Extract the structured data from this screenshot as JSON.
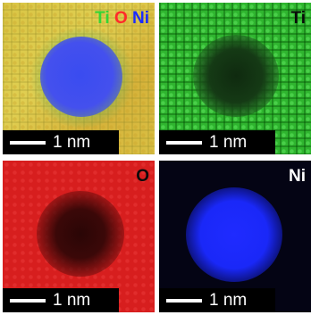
{
  "panels": {
    "composite": {
      "label_ti": "Ti",
      "label_o": "O",
      "label_ni": "Ni",
      "scale_text": "1 nm"
    },
    "ti": {
      "label": "Ti",
      "scale_text": "1 nm"
    },
    "o": {
      "label": "O",
      "scale_text": "1 nm"
    },
    "ni": {
      "label": "Ni",
      "scale_text": "1 nm"
    }
  },
  "colors": {
    "ti": "#35d435",
    "o": "#ff2a2a",
    "ni": "#1a2cff",
    "background": "#ffffff"
  }
}
